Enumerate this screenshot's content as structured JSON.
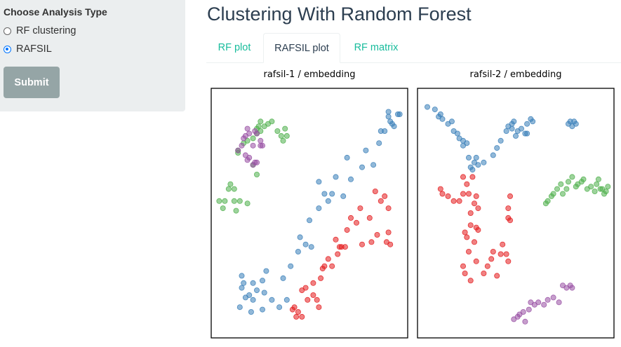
{
  "sidebar": {
    "label": "Choose Analysis Type",
    "options": [
      {
        "label": "RF clustering",
        "checked": false
      },
      {
        "label": "RAFSIL",
        "checked": true
      }
    ],
    "submit_label": "Submit"
  },
  "page": {
    "title": "Clustering With Random Forest"
  },
  "tabs": [
    {
      "label": "RF plot",
      "active": false
    },
    {
      "label": "RAFSIL plot",
      "active": true
    },
    {
      "label": "RF matrix",
      "active": false
    }
  ],
  "colors": {
    "accent": "#18bc9c",
    "blue": "#377eb8",
    "red": "#e41a1c",
    "green": "#4daf4a",
    "purple": "#984ea3"
  },
  "chart_data": [
    {
      "type": "scatter",
      "title": "rafsil-1 / embedding",
      "axes": "hidden",
      "series": [
        {
          "color": "blue",
          "x": [
            13,
            16,
            14,
            15,
            14,
            18,
            20,
            25,
            27,
            22,
            30,
            26,
            20,
            19,
            25,
            34,
            38,
            36,
            40,
            45,
            48,
            44,
            50,
            51,
            55,
            55,
            58,
            60,
            62,
            64,
            68,
            70,
            72,
            78,
            80,
            84,
            88,
            90,
            87,
            92,
            93,
            95,
            98,
            97,
            94,
            92
          ],
          "y": [
            11,
            15,
            19,
            21,
            24,
            16,
            21,
            22,
            26,
            18,
            14,
            17,
            14,
            9,
            10,
            11,
            14,
            23,
            28,
            40,
            37,
            34,
            47,
            36,
            52,
            63,
            58,
            55,
            58,
            65,
            57,
            73,
            64,
            69,
            76,
            70,
            84,
            84,
            79,
            92,
            88,
            86,
            91,
            91,
            87,
            90
          ]
        },
        {
          "color": "red",
          "x": [
            43,
            41,
            42,
            44,
            46,
            46,
            49,
            48,
            54,
            52,
            52,
            55,
            57,
            58,
            56,
            62,
            60,
            64,
            66,
            67,
            65,
            69,
            70,
            72,
            75,
            77,
            78,
            82,
            83,
            86,
            85,
            88,
            90,
            92,
            91,
            92,
            93
          ],
          "y": [
            7,
            10,
            11,
            9,
            7,
            18,
            14,
            19,
            14,
            21,
            16,
            11,
            27,
            28,
            23,
            28,
            31,
            39,
            36,
            36,
            33,
            36,
            43,
            48,
            46,
            52,
            37,
            48,
            38,
            41,
            59,
            55,
            57,
            52,
            38,
            42,
            37
          ]
        },
        {
          "color": "green",
          "x": [
            2,
            5,
            4,
            7,
            10,
            10,
            13,
            11,
            8,
            17,
            22,
            20,
            12,
            12,
            15,
            17,
            20,
            22,
            24,
            23,
            22,
            24,
            26,
            28,
            30,
            33,
            35,
            36,
            37,
            38
          ],
          "y": [
            55,
            55,
            52,
            60,
            60,
            55,
            55,
            51,
            62,
            54,
            66,
            70,
            75,
            76,
            79,
            80,
            81,
            83,
            84,
            86,
            85,
            88,
            86,
            87,
            88,
            84,
            82,
            80,
            85,
            82
          ]
        },
        {
          "color": "purple",
          "x": [
            17,
            21,
            18,
            15,
            16,
            14,
            12,
            16,
            18,
            17,
            20,
            21,
            22,
            20,
            24,
            25,
            24,
            22
          ],
          "y": [
            85,
            84,
            83,
            81,
            82,
            78,
            76,
            74,
            73,
            72,
            70,
            71,
            71,
            78,
            78,
            78,
            80,
            83
          ]
        }
      ]
    },
    {
      "type": "scatter",
      "title": "rafsil-2 / embedding",
      "axes": "hidden",
      "series": [
        {
          "color": "blue",
          "x": [
            3,
            7,
            10,
            9,
            11,
            14,
            16,
            17,
            19,
            20,
            22,
            24,
            22,
            25,
            26,
            27,
            28,
            29,
            30,
            33,
            38,
            40,
            42,
            45,
            46,
            48,
            49,
            48,
            50,
            51,
            53,
            55,
            56,
            56,
            58,
            59,
            78,
            79,
            81,
            80,
            82
          ],
          "y": [
            94,
            93,
            91,
            90,
            89,
            87,
            88,
            84,
            83,
            81,
            80,
            79,
            78,
            73,
            69,
            68,
            71,
            73,
            70,
            71,
            74,
            77,
            80,
            84,
            86,
            87,
            88,
            85,
            82,
            84,
            85,
            83,
            83,
            87,
            89,
            88,
            87,
            88,
            88,
            86,
            87
          ]
        },
        {
          "color": "red",
          "x": [
            10,
            11,
            14,
            17,
            20,
            22,
            25,
            24,
            22,
            27,
            29,
            28,
            30,
            26,
            26,
            23,
            24,
            25,
            22,
            23,
            26,
            28,
            29,
            29,
            30,
            33,
            35,
            37,
            38,
            40,
            42,
            43,
            45,
            46,
            46,
            46,
            47,
            47
          ],
          "y": [
            60,
            58,
            57,
            55,
            55,
            58,
            58,
            62,
            65,
            65,
            57,
            54,
            52,
            50,
            45,
            42,
            40,
            34,
            28,
            25,
            22,
            38,
            44,
            30,
            43,
            25,
            28,
            31,
            34,
            24,
            33,
            37,
            33,
            30,
            52,
            48,
            57,
            47
          ]
        },
        {
          "color": "green",
          "x": [
            66,
            67,
            69,
            70,
            72,
            74,
            75,
            77,
            78,
            80,
            82,
            83,
            85,
            86,
            88,
            90,
            92,
            93,
            94,
            95,
            96,
            98,
            97,
            99
          ],
          "y": [
            54,
            55,
            57,
            58,
            60,
            62,
            58,
            60,
            63,
            65,
            61,
            62,
            63,
            64,
            60,
            61,
            59,
            62,
            64,
            60,
            60,
            59,
            58,
            61
          ]
        },
        {
          "color": "purple",
          "x": [
            49,
            52,
            51,
            55,
            54,
            57,
            58,
            60,
            62,
            65,
            67,
            70,
            73,
            75,
            77,
            79,
            80
          ],
          "y": [
            6,
            8,
            7,
            5,
            9,
            10,
            13,
            12,
            13,
            12,
            14,
            15,
            13,
            20,
            19,
            20,
            19
          ]
        }
      ]
    }
  ]
}
